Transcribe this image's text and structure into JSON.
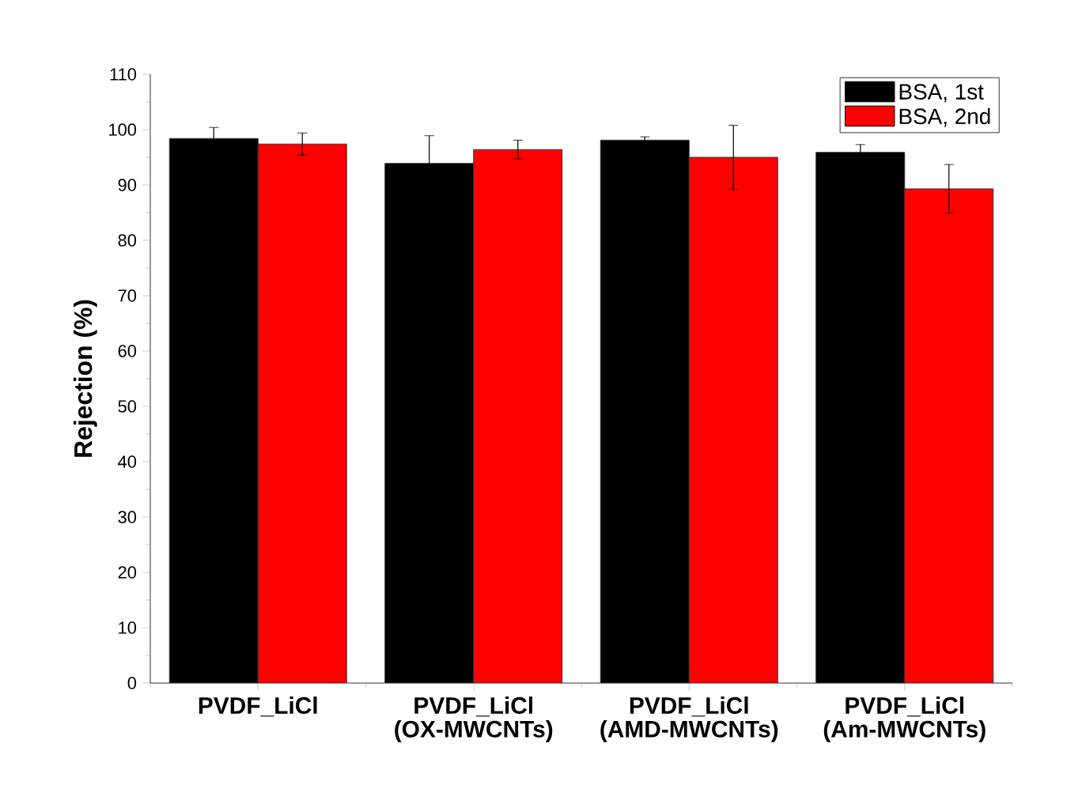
{
  "chart_data": {
    "type": "bar",
    "ylabel": "Rejection (%)",
    "categories": [
      "PVDF_LiCl",
      "PVDF_LiCl (OX-MWCNTs)",
      "PVDF_LiCl (AMD-MWCNTs)",
      "PVDF_LiCl (Am-MWCNTs)"
    ],
    "series": [
      {
        "name": "BSA, 1st",
        "color": "#000000",
        "values": [
          98.4,
          93.9,
          98.1,
          95.9
        ],
        "errors": [
          2.0,
          5.0,
          0.6,
          1.4
        ]
      },
      {
        "name": "BSA, 2nd",
        "color": "#ff0000",
        "values": [
          97.4,
          96.4,
          95.0,
          89.3
        ],
        "errors": [
          2.0,
          1.7,
          5.8,
          4.4
        ]
      }
    ],
    "ylim": [
      0,
      110
    ],
    "yticks": [
      0,
      10,
      20,
      30,
      40,
      50,
      60,
      70,
      80,
      90,
      100,
      110
    ],
    "legend": "top right",
    "grid": false
  }
}
